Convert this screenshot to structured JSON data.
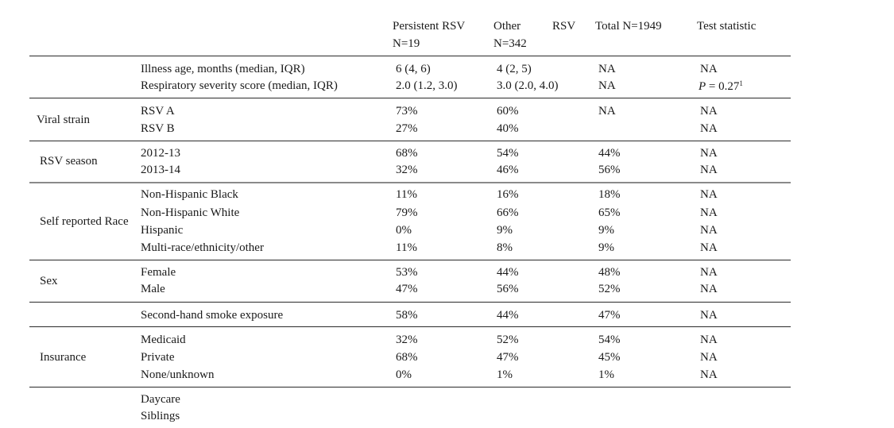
{
  "header": {
    "col1_line1": "Persistent RSV",
    "col1_line2": "N=19",
    "col2_line1_a": "Other",
    "col2_line1_b": "RSV",
    "col2_line2": "N=342",
    "col3": "Total N=1949",
    "col4": "Test statistic"
  },
  "group1": {
    "rows": [
      {
        "label": "Illness age, months (median, IQR)",
        "c1": "6 (4, 6)",
        "c2": "4 (2, 5)",
        "c3": "NA",
        "c4": "NA"
      },
      {
        "label": "Respiratory severity score (median, IQR)",
        "c1": "2.0 (1.2, 3.0)",
        "c2": "3.0 (2.0, 4.0)",
        "c3": "NA",
        "c4_p": "P",
        "c4_rest": " = 0.27",
        "c4_sup": "1"
      }
    ]
  },
  "group2": {
    "name": "Viral strain",
    "rows": [
      {
        "label": "RSV A",
        "c1": "73%",
        "c2": "60%",
        "c3": "NA",
        "c4": "NA"
      },
      {
        "label": "RSV B",
        "c1": "27%",
        "c2": "40%",
        "c3": "",
        "c4": "NA"
      }
    ]
  },
  "group3": {
    "name": "RSV season",
    "rows": [
      {
        "label": "2012-13",
        "c1": "68%",
        "c2": "54%",
        "c3": "44%",
        "c4": "NA"
      },
      {
        "label": "2013-14",
        "c1": "32%",
        "c2": "46%",
        "c3": "56%",
        "c4": "NA"
      }
    ]
  },
  "group4": {
    "name": "Self reported Race",
    "rows": [
      {
        "label": "Non-Hispanic Black",
        "c1": "11%",
        "c2": "16%",
        "c3": "18%",
        "c4": "NA"
      },
      {
        "label": "Non-Hispanic White",
        "c1": "79%",
        "c2": "66%",
        "c3": "65%",
        "c4": "NA"
      },
      {
        "label": "Hispanic",
        "c1": "0%",
        "c2": "9%",
        "c3": "9%",
        "c4": "NA"
      },
      {
        "label": "Multi-race/ethnicity/other",
        "c1": "11%",
        "c2": "8%",
        "c3": "9%",
        "c4": "NA"
      }
    ]
  },
  "group5": {
    "name": "Sex",
    "rows": [
      {
        "label": "Female",
        "c1": "53%",
        "c2": "44%",
        "c3": "48%",
        "c4": "NA"
      },
      {
        "label": "Male",
        "c1": "47%",
        "c2": "56%",
        "c3": "52%",
        "c4": "NA"
      }
    ]
  },
  "group6": {
    "rows": [
      {
        "label": "Second-hand smoke exposure",
        "c1": "58%",
        "c2": "44%",
        "c3": "47%",
        "c4": "NA"
      }
    ]
  },
  "group7": {
    "name": "Insurance",
    "rows": [
      {
        "label": "Medicaid",
        "c1": "32%",
        "c2": "52%",
        "c3": "54%",
        "c4": "NA"
      },
      {
        "label": "Private",
        "c1": "68%",
        "c2": "47%",
        "c3": "45%",
        "c4": "NA"
      },
      {
        "label": "None/unknown",
        "c1": "0%",
        "c2": "1%",
        "c3": "1%",
        "c4": "NA"
      }
    ]
  },
  "group8": {
    "rows": [
      {
        "label": "Daycare"
      },
      {
        "label": "Siblings"
      }
    ]
  }
}
